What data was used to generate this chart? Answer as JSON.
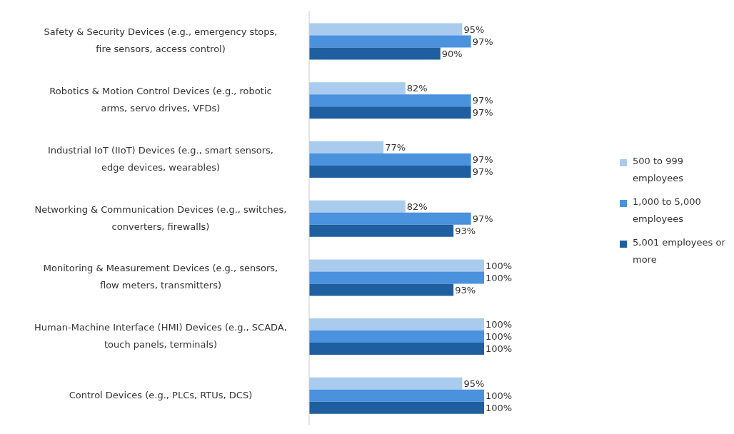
{
  "chart_data": {
    "type": "bar",
    "orientation": "horizontal",
    "categories": [
      "Safety & Security Devices (e.g., emergency stops, fire sensors, access control)",
      "Robotics & Motion Control Devices (e.g., robotic arms, servo drives, VFDs)",
      "Industrial IoT (IIoT) Devices (e.g., smart sensors, edge devices, wearables)",
      "Networking & Communication Devices (e.g., switches, converters, firewalls)",
      "Monitoring & Measurement Devices (e.g., sensors, flow meters, transmitters)",
      "Human-Machine Interface (HMI) Devices (e.g., SCADA, touch panels, terminals)",
      "Control Devices (e.g., PLCs, RTUs, DCS)"
    ],
    "series": [
      {
        "name": "500 to 999 employees",
        "color": "#a9cbee",
        "values": [
          95,
          82,
          77,
          82,
          100,
          100,
          95
        ],
        "value_labels": [
          "95%",
          "82%",
          "77%",
          "82%",
          "100%",
          "100%",
          "95%"
        ]
      },
      {
        "name": "1,000 to 5,000 employees",
        "color": "#4a91de",
        "values": [
          97,
          97,
          97,
          97,
          100,
          100,
          100
        ],
        "value_labels": [
          "97%",
          "97%",
          "97%",
          "97%",
          "100%",
          "100%",
          "100%"
        ]
      },
      {
        "name": "5,001 employees or more",
        "color": "#1f5f9f",
        "values": [
          90,
          97,
          97,
          93,
          93,
          100,
          100
        ],
        "value_labels": [
          "90%",
          "97%",
          "97%",
          "93%",
          "93%",
          "100%",
          "100%"
        ]
      }
    ],
    "xlim": [
      60,
      100
    ],
    "tick_labels": "y",
    "legend": "right"
  }
}
